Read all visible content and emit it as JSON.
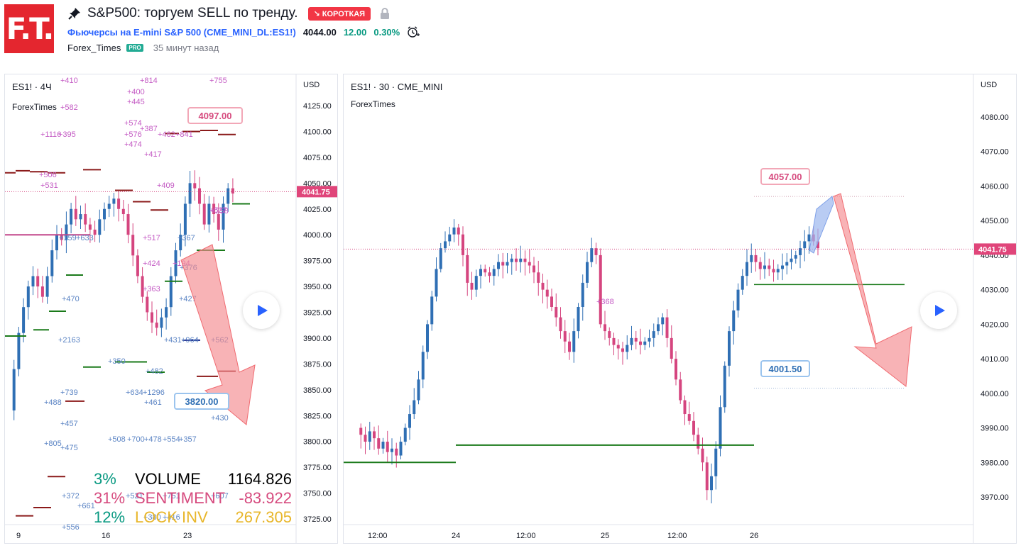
{
  "logo": {
    "text": "F.T."
  },
  "header": {
    "title": "S&P500: торгуем SELL по тренду.",
    "badge": "↘ КОРОТКАЯ",
    "symbol_link": "Фьючерсы на E-mini S&P 500 (CME_MINI_DL:ES1!)",
    "price": "4044.00",
    "change": "12.00",
    "change_pct": "0.30%",
    "author": "Forex_Times",
    "pro_badge": "PRO",
    "time_ago": "35 минут назад"
  },
  "left_chart": {
    "title": "ES1! · 4Ч",
    "subtitle": "ForexTimes",
    "currency": "USD",
    "y_ticks": [
      "4125.00",
      "4100.00",
      "4075.00",
      "4050.00",
      "4025.00",
      "4000.00",
      "3975.00",
      "3950.00",
      "3925.00",
      "3900.00",
      "3875.00",
      "3850.00",
      "3825.00",
      "3800.00",
      "3775.00",
      "3750.00",
      "3725.00"
    ],
    "x_ticks": [
      "9",
      "16",
      "23"
    ],
    "price_tag": "4041.75",
    "callout_top": "4097.00",
    "callout_bottom": "3820.00",
    "stats": [
      {
        "pct": "3%",
        "name": "VOLUME",
        "value": "1164.826",
        "color": "#089981",
        "name_color": "#000000"
      },
      {
        "pct": "31%",
        "name": "SENTIMENT",
        "value": "-83.922",
        "color": "#d64a7e",
        "name_color": "#d64a7e"
      },
      {
        "pct": "12%",
        "name": "LOCK INV",
        "value": "267.305",
        "color": "#089981",
        "name_color": "#e8b62a"
      }
    ],
    "pink_labels": [
      "+410",
      "+814",
      "+755",
      "+400",
      "+445",
      "+582",
      "+574",
      "+387",
      "+1116",
      "+395",
      "+576",
      "+462",
      "+841",
      "+474",
      "+417",
      "+506",
      "+531",
      "+409",
      "+517",
      "+424",
      "+363",
      "+527",
      "+194",
      "+258"
    ],
    "blue_labels": [
      "+159",
      "+633",
      "+367",
      "+376",
      "+470",
      "+427",
      "+2163",
      "+431",
      "+964",
      "+562",
      "+350",
      "+482",
      "+739",
      "+634",
      "+1296",
      "+488",
      "+461",
      "+457",
      "+430",
      "+805",
      "+475",
      "+508",
      "+700",
      "+478",
      "+554",
      "+357",
      "+372",
      "+521",
      "+751",
      "+607",
      "+661",
      "+556",
      "+380",
      "+416"
    ]
  },
  "right_chart": {
    "title": "ES1! · 30 · CME_MINI",
    "subtitle": "ForexTimes",
    "currency": "USD",
    "y_ticks": [
      "4080.00",
      "4070.00",
      "4060.00",
      "4050.00",
      "4040.00",
      "4030.00",
      "4020.00",
      "4010.00",
      "4000.00",
      "3990.00",
      "3980.00",
      "3970.00"
    ],
    "x_ticks": [
      "12:00",
      "24",
      "12:00",
      "25",
      "12:00",
      "26"
    ],
    "price_tag": "4041.75",
    "callout_top": "4057.00",
    "callout_bottom": "4001.50",
    "mid_label": "+368"
  },
  "colors": {
    "up": "#2f6fb4",
    "down": "#d5457f",
    "green_level": "#1a7a1a",
    "darkred_level": "#8b1a1a",
    "arrow_red": "#f48b8f",
    "arrow_blue": "#9bb6ee"
  }
}
